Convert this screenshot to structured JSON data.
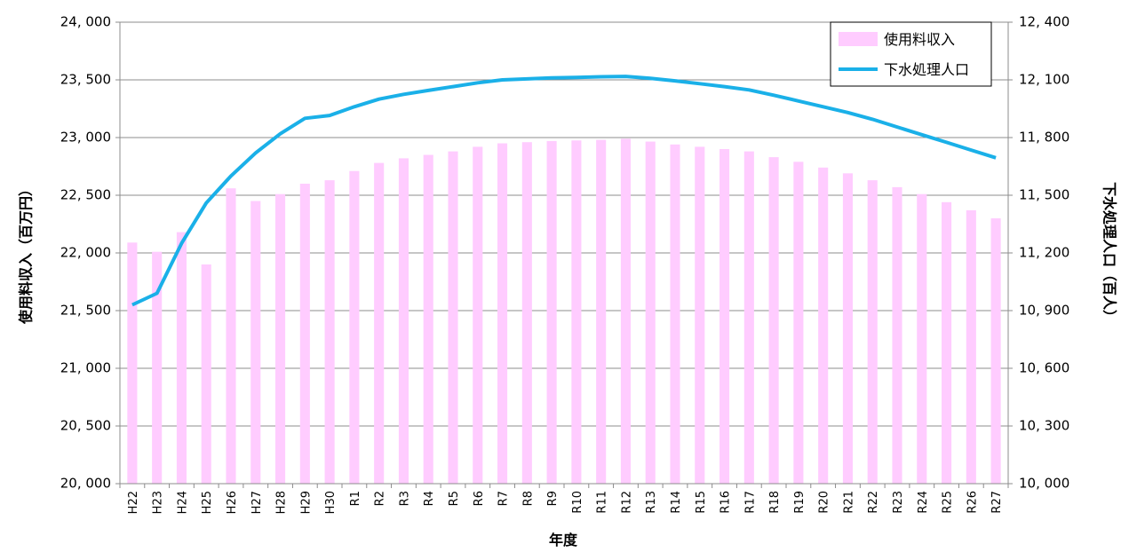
{
  "chart_data": {
    "type": "bar",
    "categories": [
      "H22",
      "H23",
      "H24",
      "H25",
      "H26",
      "H27",
      "H28",
      "H29",
      "H30",
      "R1",
      "R2",
      "R3",
      "R4",
      "R5",
      "R6",
      "R7",
      "R8",
      "R9",
      "R10",
      "R11",
      "R12",
      "R13",
      "R14",
      "R15",
      "R16",
      "R17",
      "R18",
      "R19",
      "R20",
      "R21",
      "R22",
      "R23",
      "R24",
      "R25",
      "R26",
      "R27"
    ],
    "series": [
      {
        "name": "使用料収入",
        "type": "bar",
        "axis": "left",
        "color": "#ffccff",
        "values": [
          22090,
          22010,
          22180,
          21900,
          22560,
          22450,
          22510,
          22600,
          22630,
          22710,
          22780,
          22820,
          22850,
          22880,
          22920,
          22950,
          22960,
          22970,
          22975,
          22980,
          22990,
          22965,
          22940,
          22920,
          22900,
          22880,
          22830,
          22790,
          22740,
          22690,
          22630,
          22570,
          22510,
          22440,
          22370,
          22300
        ]
      },
      {
        "name": "下水処理人口",
        "type": "line",
        "axis": "right",
        "color": "#1ab0e8",
        "values": [
          10930,
          10990,
          11250,
          11460,
          11600,
          11720,
          11820,
          11900,
          11915,
          11960,
          12000,
          12025,
          12045,
          12065,
          12085,
          12100,
          12105,
          12110,
          12113,
          12116,
          12118,
          12108,
          12095,
          12080,
          12065,
          12048,
          12020,
          11990,
          11960,
          11930,
          11895,
          11855,
          11815,
          11775,
          11735,
          11695
        ]
      }
    ],
    "xlabel": "年度",
    "ylabel": "使用料収入（百万円）",
    "y2label": "下水処理人口（百人）",
    "ylim": [
      20000,
      24000
    ],
    "y2lim": [
      10000,
      12400
    ],
    "yticks": [
      "20, 000",
      "20, 500",
      "21, 000",
      "21, 500",
      "22, 000",
      "22, 500",
      "23, 000",
      "23, 500",
      "24, 000"
    ],
    "y2ticks": [
      "10, 000",
      "10, 300",
      "10, 600",
      "10, 900",
      "11, 200",
      "11, 500",
      "11, 800",
      "12, 100",
      "12, 400"
    ],
    "grid": true,
    "legend": "top-right"
  }
}
